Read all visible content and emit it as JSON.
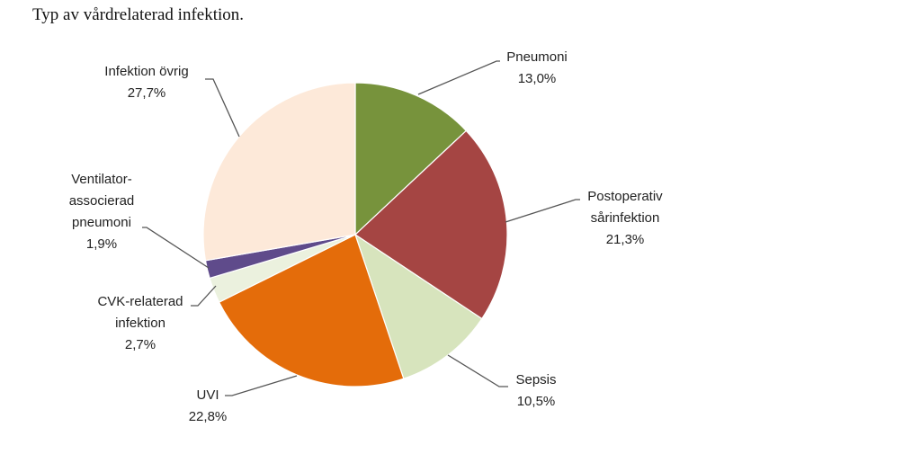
{
  "title": "Typ av vårdrelaterad infektion.",
  "chart_data": {
    "type": "pie",
    "title": "Typ av vårdrelaterad infektion.",
    "slices": [
      {
        "label": [
          "Pneumoni"
        ],
        "value_label": "13,0%",
        "value": 13.0,
        "color": "#77933c"
      },
      {
        "label": [
          "Postoperativ",
          "sårinfektion"
        ],
        "value_label": "21,3%",
        "value": 21.3,
        "color": "#a54543"
      },
      {
        "label": [
          "Sepsis"
        ],
        "value_label": "10,5%",
        "value": 10.5,
        "color": "#d7e4bd"
      },
      {
        "label": [
          "UVI"
        ],
        "value_label": "22,8%",
        "value": 22.8,
        "color": "#e46c0a"
      },
      {
        "label": [
          "CVK-relaterad",
          "infektion"
        ],
        "value_label": "2,7%",
        "value": 2.7,
        "color": "#ebf1de"
      },
      {
        "label": [
          "Ventilator-",
          "associerad",
          "pneumoni"
        ],
        "value_label": "1,9%",
        "value": 1.9,
        "color": "#5f4b8b"
      },
      {
        "label": [
          "Infektion övrig"
        ],
        "value_label": "27,7%",
        "value": 27.7,
        "color": "#fde9d9"
      }
    ]
  }
}
